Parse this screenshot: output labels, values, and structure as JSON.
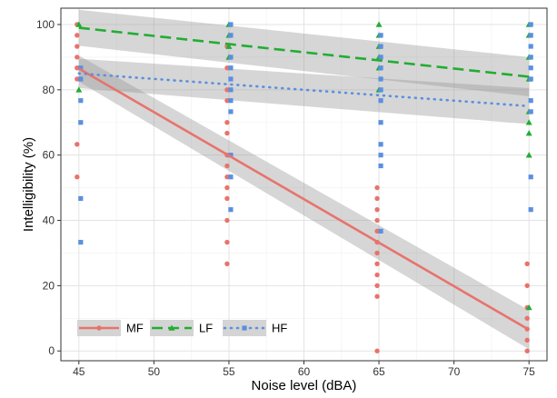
{
  "chart_data": {
    "type": "scatter",
    "xlabel": "Noise level (dBA)",
    "ylabel": "Intelligibility (%)",
    "xlim": [
      43.8,
      76.2
    ],
    "ylim": [
      -3,
      105
    ],
    "x_ticks": [
      "45",
      "50",
      "55",
      "60",
      "65",
      "70",
      "75"
    ],
    "y_ticks": [
      "0",
      "20",
      "40",
      "60",
      "80",
      "100"
    ],
    "grid": true,
    "legend_position": "bottom-left",
    "series": [
      {
        "name": "MF",
        "color": "#e8736c",
        "marker": "circle",
        "line_style": "solid",
        "fit": {
          "x": [
            45,
            75
          ],
          "y": [
            86.5,
            6.5
          ],
          "band_lower": [
            82.5,
            0.5
          ],
          "band_upper": [
            90.5,
            12.5
          ]
        },
        "points": [
          {
            "x": 45,
            "y": 100
          },
          {
            "x": 45,
            "y": 96.7
          },
          {
            "x": 45,
            "y": 93.3
          },
          {
            "x": 45,
            "y": 90
          },
          {
            "x": 45,
            "y": 86.7
          },
          {
            "x": 45,
            "y": 83.3
          },
          {
            "x": 45,
            "y": 63.3
          },
          {
            "x": 45,
            "y": 53.3
          },
          {
            "x": 55,
            "y": 93.3
          },
          {
            "x": 55,
            "y": 86.7
          },
          {
            "x": 55,
            "y": 80
          },
          {
            "x": 55,
            "y": 76.7
          },
          {
            "x": 55,
            "y": 70
          },
          {
            "x": 55,
            "y": 66.7
          },
          {
            "x": 55,
            "y": 60
          },
          {
            "x": 55,
            "y": 56.7
          },
          {
            "x": 55,
            "y": 53.3
          },
          {
            "x": 55,
            "y": 50
          },
          {
            "x": 55,
            "y": 46.7
          },
          {
            "x": 55,
            "y": 40
          },
          {
            "x": 55,
            "y": 33.3
          },
          {
            "x": 55,
            "y": 26.7
          },
          {
            "x": 65,
            "y": 50
          },
          {
            "x": 65,
            "y": 46.7
          },
          {
            "x": 65,
            "y": 43.3
          },
          {
            "x": 65,
            "y": 40
          },
          {
            "x": 65,
            "y": 36.7
          },
          {
            "x": 65,
            "y": 33.3
          },
          {
            "x": 65,
            "y": 30
          },
          {
            "x": 65,
            "y": 26.7
          },
          {
            "x": 65,
            "y": 23.3
          },
          {
            "x": 65,
            "y": 20
          },
          {
            "x": 65,
            "y": 16.7
          },
          {
            "x": 65,
            "y": 0
          },
          {
            "x": 75,
            "y": 26.7
          },
          {
            "x": 75,
            "y": 20
          },
          {
            "x": 75,
            "y": 13.3
          },
          {
            "x": 75,
            "y": 10
          },
          {
            "x": 75,
            "y": 6.7
          },
          {
            "x": 75,
            "y": 3.3
          },
          {
            "x": 75,
            "y": 0
          }
        ]
      },
      {
        "name": "LF",
        "color": "#22ad33",
        "marker": "triangle",
        "line_style": "dashed",
        "fit": {
          "x": [
            45,
            75
          ],
          "y": [
            99,
            84
          ],
          "band_lower": [
            93.5,
            78
          ],
          "band_upper": [
            104.5,
            90
          ]
        },
        "points": [
          {
            "x": 45,
            "y": 100
          },
          {
            "x": 45,
            "y": 80
          },
          {
            "x": 55,
            "y": 100
          },
          {
            "x": 55,
            "y": 96.7
          },
          {
            "x": 55,
            "y": 93.3
          },
          {
            "x": 55,
            "y": 90
          },
          {
            "x": 65,
            "y": 100
          },
          {
            "x": 65,
            "y": 96.7
          },
          {
            "x": 65,
            "y": 93.3
          },
          {
            "x": 65,
            "y": 90
          },
          {
            "x": 65,
            "y": 86.7
          },
          {
            "x": 65,
            "y": 80
          },
          {
            "x": 75,
            "y": 100
          },
          {
            "x": 75,
            "y": 96.7
          },
          {
            "x": 75,
            "y": 90
          },
          {
            "x": 75,
            "y": 83.3
          },
          {
            "x": 75,
            "y": 73.3
          },
          {
            "x": 75,
            "y": 70
          },
          {
            "x": 75,
            "y": 66.7
          },
          {
            "x": 75,
            "y": 60
          },
          {
            "x": 75,
            "y": 13.3
          }
        ]
      },
      {
        "name": "HF",
        "color": "#5b8fe0",
        "marker": "square",
        "line_style": "dotted",
        "fit": {
          "x": [
            45,
            75
          ],
          "y": [
            85,
            75
          ],
          "band_lower": [
            80.5,
            69.5
          ],
          "band_upper": [
            89.5,
            80.5
          ]
        },
        "points": [
          {
            "x": 45,
            "y": 86.7
          },
          {
            "x": 45,
            "y": 83.3
          },
          {
            "x": 45,
            "y": 76.7
          },
          {
            "x": 45,
            "y": 70
          },
          {
            "x": 45,
            "y": 46.7
          },
          {
            "x": 45,
            "y": 33.3
          },
          {
            "x": 55,
            "y": 100
          },
          {
            "x": 55,
            "y": 96.7
          },
          {
            "x": 55,
            "y": 90
          },
          {
            "x": 55,
            "y": 86.7
          },
          {
            "x": 55,
            "y": 83.3
          },
          {
            "x": 55,
            "y": 80
          },
          {
            "x": 55,
            "y": 76.7
          },
          {
            "x": 55,
            "y": 73.3
          },
          {
            "x": 55,
            "y": 60
          },
          {
            "x": 55,
            "y": 53.3
          },
          {
            "x": 55,
            "y": 43.3
          },
          {
            "x": 65,
            "y": 96.7
          },
          {
            "x": 65,
            "y": 93.3
          },
          {
            "x": 65,
            "y": 90
          },
          {
            "x": 65,
            "y": 86.7
          },
          {
            "x": 65,
            "y": 83.3
          },
          {
            "x": 65,
            "y": 80
          },
          {
            "x": 65,
            "y": 76.7
          },
          {
            "x": 65,
            "y": 70
          },
          {
            "x": 65,
            "y": 63.3
          },
          {
            "x": 65,
            "y": 60
          },
          {
            "x": 65,
            "y": 56.7
          },
          {
            "x": 65,
            "y": 36.7
          },
          {
            "x": 75,
            "y": 100
          },
          {
            "x": 75,
            "y": 96.7
          },
          {
            "x": 75,
            "y": 93.3
          },
          {
            "x": 75,
            "y": 90
          },
          {
            "x": 75,
            "y": 86.7
          },
          {
            "x": 75,
            "y": 83.3
          },
          {
            "x": 75,
            "y": 76.7
          },
          {
            "x": 75,
            "y": 73.3
          },
          {
            "x": 75,
            "y": 53.3
          },
          {
            "x": 75,
            "y": 43.3
          }
        ]
      }
    ]
  }
}
